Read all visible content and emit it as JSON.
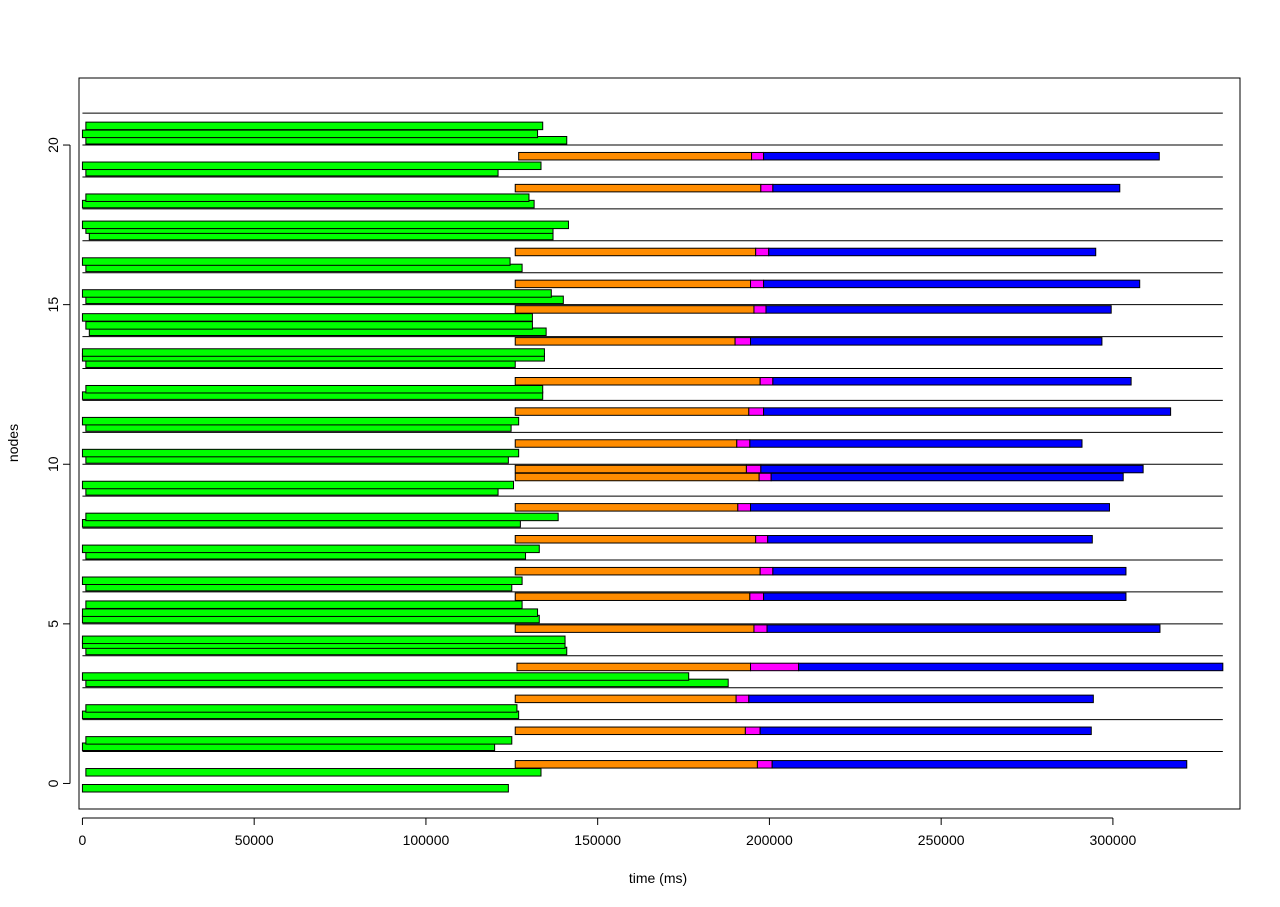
{
  "chart_data": {
    "type": "gantt",
    "title": "",
    "xlabel": "time (ms)",
    "ylabel": "nodes",
    "xlim": [
      -1000,
      337000
    ],
    "ylim": [
      -0.8,
      22.1
    ],
    "grid": false,
    "x_ticks": [
      0,
      50000,
      100000,
      150000,
      200000,
      250000,
      300000
    ],
    "x_tick_labels": [
      "0",
      "50000",
      "100000",
      "150000",
      "200000",
      "250000",
      "300000"
    ],
    "y_ticks": [
      0,
      5,
      10,
      15,
      20
    ],
    "y_tick_labels": [
      "0",
      "5",
      "10",
      "15",
      "20"
    ],
    "node_separators_y": [
      1,
      2,
      3,
      4,
      5,
      6,
      7,
      8,
      9,
      10,
      11,
      12,
      13,
      14,
      15,
      16,
      17,
      18,
      19,
      20,
      21
    ],
    "separator_x_range": [
      0,
      332000
    ],
    "phase_colors": {
      "map": "#00ff00",
      "shuffle": "#ff8c00",
      "sort": "#ff00ff",
      "reduce": "#0000ff"
    },
    "bars": [
      {
        "y": -0.15,
        "segments": [
          {
            "phase": "map",
            "start": 0,
            "end": 124000
          }
        ]
      },
      {
        "y": 0.35,
        "segments": [
          {
            "phase": "map",
            "start": 1000,
            "end": 133500
          }
        ]
      },
      {
        "y": 0.6,
        "segments": [
          {
            "phase": "shuffle",
            "start": 126000,
            "end": 196500
          },
          {
            "phase": "sort",
            "start": 196500,
            "end": 200800
          },
          {
            "phase": "reduce",
            "start": 200800,
            "end": 321500
          }
        ]
      },
      {
        "y": 1.15,
        "segments": [
          {
            "phase": "map",
            "start": 0,
            "end": 120000
          }
        ]
      },
      {
        "y": 1.35,
        "segments": [
          {
            "phase": "map",
            "start": 1000,
            "end": 125000
          }
        ]
      },
      {
        "y": 1.65,
        "segments": [
          {
            "phase": "shuffle",
            "start": 126000,
            "end": 193000
          },
          {
            "phase": "sort",
            "start": 193000,
            "end": 197300
          },
          {
            "phase": "reduce",
            "start": 197300,
            "end": 293700
          }
        ]
      },
      {
        "y": 2.15,
        "segments": [
          {
            "phase": "map",
            "start": 0,
            "end": 127000
          }
        ]
      },
      {
        "y": 2.35,
        "segments": [
          {
            "phase": "map",
            "start": 1000,
            "end": 126500
          }
        ]
      },
      {
        "y": 2.65,
        "segments": [
          {
            "phase": "shuffle",
            "start": 126000,
            "end": 190300
          },
          {
            "phase": "sort",
            "start": 190300,
            "end": 194000
          },
          {
            "phase": "reduce",
            "start": 194000,
            "end": 294300
          }
        ]
      },
      {
        "y": 3.15,
        "segments": [
          {
            "phase": "map",
            "start": 1000,
            "end": 188000
          }
        ]
      },
      {
        "y": 3.35,
        "segments": [
          {
            "phase": "map",
            "start": 0,
            "end": 176500
          }
        ]
      },
      {
        "y": 3.65,
        "segments": [
          {
            "phase": "shuffle",
            "start": 126500,
            "end": 194500
          },
          {
            "phase": "sort",
            "start": 194500,
            "end": 208500
          },
          {
            "phase": "reduce",
            "start": 208500,
            "end": 332000
          }
        ]
      },
      {
        "y": 4.15,
        "segments": [
          {
            "phase": "map",
            "start": 1000,
            "end": 141000
          }
        ]
      },
      {
        "y": 4.35,
        "segments": [
          {
            "phase": "map",
            "start": 0,
            "end": 140500
          }
        ]
      },
      {
        "y": 4.5,
        "segments": [
          {
            "phase": "map",
            "start": 0,
            "end": 140500
          }
        ]
      },
      {
        "y": 4.85,
        "segments": [
          {
            "phase": "shuffle",
            "start": 126000,
            "end": 195500
          },
          {
            "phase": "sort",
            "start": 195500,
            "end": 199300
          },
          {
            "phase": "reduce",
            "start": 199300,
            "end": 313700
          }
        ]
      },
      {
        "y": 5.15,
        "segments": [
          {
            "phase": "map",
            "start": 0,
            "end": 133000
          }
        ]
      },
      {
        "y": 5.35,
        "segments": [
          {
            "phase": "map",
            "start": 0,
            "end": 132500
          }
        ]
      },
      {
        "y": 5.6,
        "segments": [
          {
            "phase": "map",
            "start": 1000,
            "end": 128000
          }
        ]
      },
      {
        "y": 5.85,
        "segments": [
          {
            "phase": "shuffle",
            "start": 126000,
            "end": 194300
          },
          {
            "phase": "sort",
            "start": 194300,
            "end": 198300
          },
          {
            "phase": "reduce",
            "start": 198300,
            "end": 303800
          }
        ]
      },
      {
        "y": 6.15,
        "segments": [
          {
            "phase": "map",
            "start": 1000,
            "end": 125000
          }
        ]
      },
      {
        "y": 6.35,
        "segments": [
          {
            "phase": "map",
            "start": 0,
            "end": 128000
          }
        ]
      },
      {
        "y": 6.65,
        "segments": [
          {
            "phase": "shuffle",
            "start": 126000,
            "end": 197300
          },
          {
            "phase": "sort",
            "start": 197300,
            "end": 201000
          },
          {
            "phase": "reduce",
            "start": 201000,
            "end": 303800
          }
        ]
      },
      {
        "y": 7.15,
        "segments": [
          {
            "phase": "map",
            "start": 1000,
            "end": 129000
          }
        ]
      },
      {
        "y": 7.35,
        "segments": [
          {
            "phase": "map",
            "start": 0,
            "end": 133000
          }
        ]
      },
      {
        "y": 7.65,
        "segments": [
          {
            "phase": "shuffle",
            "start": 126000,
            "end": 196000
          },
          {
            "phase": "sort",
            "start": 196000,
            "end": 199500
          },
          {
            "phase": "reduce",
            "start": 199500,
            "end": 294000
          }
        ]
      },
      {
        "y": 8.15,
        "segments": [
          {
            "phase": "map",
            "start": 0,
            "end": 127500
          }
        ]
      },
      {
        "y": 8.35,
        "segments": [
          {
            "phase": "map",
            "start": 1000,
            "end": 138500
          }
        ]
      },
      {
        "y": 8.65,
        "segments": [
          {
            "phase": "shuffle",
            "start": 126000,
            "end": 190800
          },
          {
            "phase": "sort",
            "start": 190800,
            "end": 194500
          },
          {
            "phase": "reduce",
            "start": 194500,
            "end": 299000
          }
        ]
      },
      {
        "y": 9.15,
        "segments": [
          {
            "phase": "map",
            "start": 1000,
            "end": 121000
          }
        ]
      },
      {
        "y": 9.35,
        "segments": [
          {
            "phase": "map",
            "start": 0,
            "end": 125500
          }
        ]
      },
      {
        "y": 9.6,
        "segments": [
          {
            "phase": "shuffle",
            "start": 126000,
            "end": 197000
          },
          {
            "phase": "sort",
            "start": 197000,
            "end": 200500
          },
          {
            "phase": "reduce",
            "start": 200500,
            "end": 303000
          }
        ]
      },
      {
        "y": 9.85,
        "segments": [
          {
            "phase": "shuffle",
            "start": 126000,
            "end": 193300
          },
          {
            "phase": "sort",
            "start": 193300,
            "end": 197500
          },
          {
            "phase": "reduce",
            "start": 197500,
            "end": 308800
          }
        ]
      },
      {
        "y": 10.15,
        "segments": [
          {
            "phase": "map",
            "start": 1000,
            "end": 124000
          }
        ]
      },
      {
        "y": 10.35,
        "segments": [
          {
            "phase": "map",
            "start": 0,
            "end": 127000
          }
        ]
      },
      {
        "y": 10.65,
        "segments": [
          {
            "phase": "shuffle",
            "start": 126000,
            "end": 190500
          },
          {
            "phase": "sort",
            "start": 190500,
            "end": 194300
          },
          {
            "phase": "reduce",
            "start": 194300,
            "end": 291000
          }
        ]
      },
      {
        "y": 11.15,
        "segments": [
          {
            "phase": "map",
            "start": 1000,
            "end": 124800
          }
        ]
      },
      {
        "y": 11.35,
        "segments": [
          {
            "phase": "map",
            "start": 0,
            "end": 127000
          }
        ]
      },
      {
        "y": 11.65,
        "segments": [
          {
            "phase": "shuffle",
            "start": 126000,
            "end": 194000
          },
          {
            "phase": "sort",
            "start": 194000,
            "end": 198300
          },
          {
            "phase": "reduce",
            "start": 198300,
            "end": 316800
          }
        ]
      },
      {
        "y": 12.15,
        "segments": [
          {
            "phase": "map",
            "start": 0,
            "end": 134000
          }
        ]
      },
      {
        "y": 12.35,
        "segments": [
          {
            "phase": "map",
            "start": 1000,
            "end": 134000
          }
        ]
      },
      {
        "y": 12.6,
        "segments": [
          {
            "phase": "shuffle",
            "start": 126000,
            "end": 197300
          },
          {
            "phase": "sort",
            "start": 197300,
            "end": 201000
          },
          {
            "phase": "reduce",
            "start": 201000,
            "end": 305300
          }
        ]
      },
      {
        "y": 13.15,
        "segments": [
          {
            "phase": "map",
            "start": 1000,
            "end": 126000
          }
        ]
      },
      {
        "y": 13.35,
        "segments": [
          {
            "phase": "map",
            "start": 0,
            "end": 134500
          }
        ]
      },
      {
        "y": 13.5,
        "segments": [
          {
            "phase": "map",
            "start": 0,
            "end": 134500
          }
        ]
      },
      {
        "y": 13.85,
        "segments": [
          {
            "phase": "shuffle",
            "start": 126000,
            "end": 190000
          },
          {
            "phase": "sort",
            "start": 190000,
            "end": 194500
          },
          {
            "phase": "reduce",
            "start": 194500,
            "end": 296800
          }
        ]
      },
      {
        "y": 14.15,
        "segments": [
          {
            "phase": "map",
            "start": 2000,
            "end": 135000
          }
        ]
      },
      {
        "y": 14.35,
        "segments": [
          {
            "phase": "map",
            "start": 1000,
            "end": 131000
          }
        ]
      },
      {
        "y": 14.6,
        "segments": [
          {
            "phase": "map",
            "start": 0,
            "end": 131000
          }
        ]
      },
      {
        "y": 14.85,
        "segments": [
          {
            "phase": "shuffle",
            "start": 126000,
            "end": 195500
          },
          {
            "phase": "sort",
            "start": 195500,
            "end": 199000
          },
          {
            "phase": "reduce",
            "start": 199000,
            "end": 299500
          }
        ]
      },
      {
        "y": 15.15,
        "segments": [
          {
            "phase": "map",
            "start": 1000,
            "end": 140000
          }
        ]
      },
      {
        "y": 15.35,
        "segments": [
          {
            "phase": "map",
            "start": 0,
            "end": 136500
          }
        ]
      },
      {
        "y": 15.65,
        "segments": [
          {
            "phase": "shuffle",
            "start": 126000,
            "end": 194500
          },
          {
            "phase": "sort",
            "start": 194500,
            "end": 198300
          },
          {
            "phase": "reduce",
            "start": 198300,
            "end": 307800
          }
        ]
      },
      {
        "y": 16.15,
        "segments": [
          {
            "phase": "map",
            "start": 1000,
            "end": 128000
          }
        ]
      },
      {
        "y": 16.35,
        "segments": [
          {
            "phase": "map",
            "start": 0,
            "end": 124500
          }
        ]
      },
      {
        "y": 16.65,
        "segments": [
          {
            "phase": "shuffle",
            "start": 126000,
            "end": 196000
          },
          {
            "phase": "sort",
            "start": 196000,
            "end": 199800
          },
          {
            "phase": "reduce",
            "start": 199800,
            "end": 295000
          }
        ]
      },
      {
        "y": 17.15,
        "segments": [
          {
            "phase": "map",
            "start": 2000,
            "end": 137000
          }
        ]
      },
      {
        "y": 17.35,
        "segments": [
          {
            "phase": "map",
            "start": 1000,
            "end": 137000
          }
        ]
      },
      {
        "y": 17.5,
        "segments": [
          {
            "phase": "map",
            "start": 0,
            "end": 141500
          }
        ]
      },
      {
        "y": 18.15,
        "segments": [
          {
            "phase": "map",
            "start": 0,
            "end": 131500
          }
        ]
      },
      {
        "y": 18.35,
        "segments": [
          {
            "phase": "map",
            "start": 1000,
            "end": 130000
          }
        ]
      },
      {
        "y": 18.65,
        "segments": [
          {
            "phase": "shuffle",
            "start": 126000,
            "end": 197500
          },
          {
            "phase": "sort",
            "start": 197500,
            "end": 201000
          },
          {
            "phase": "reduce",
            "start": 201000,
            "end": 302000
          }
        ]
      },
      {
        "y": 19.15,
        "segments": [
          {
            "phase": "map",
            "start": 1000,
            "end": 121000
          }
        ]
      },
      {
        "y": 19.35,
        "segments": [
          {
            "phase": "map",
            "start": 0,
            "end": 133500
          }
        ]
      },
      {
        "y": 19.65,
        "segments": [
          {
            "phase": "shuffle",
            "start": 127000,
            "end": 194800
          },
          {
            "phase": "sort",
            "start": 194800,
            "end": 198300
          },
          {
            "phase": "reduce",
            "start": 198300,
            "end": 313500
          }
        ]
      },
      {
        "y": 20.15,
        "segments": [
          {
            "phase": "map",
            "start": 1000,
            "end": 141000
          }
        ]
      },
      {
        "y": 20.35,
        "segments": [
          {
            "phase": "map",
            "start": 0,
            "end": 132500
          }
        ]
      },
      {
        "y": 20.6,
        "segments": [
          {
            "phase": "map",
            "start": 1000,
            "end": 134000
          }
        ]
      }
    ]
  }
}
